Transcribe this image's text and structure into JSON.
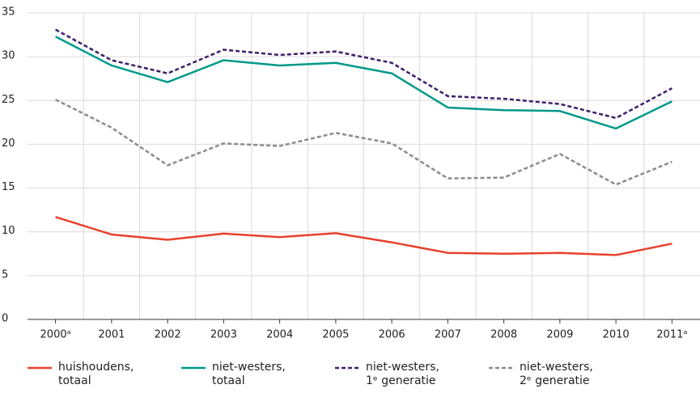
{
  "chart_data": {
    "type": "line",
    "categories": [
      "2000ᵃ",
      "2001",
      "2002",
      "2003",
      "2004",
      "2005",
      "2006",
      "2007",
      "2008",
      "2009",
      "2010",
      "2011ᵃ"
    ],
    "series": [
      {
        "name": "huishoudens, totaal",
        "color": "#e8412c",
        "line_style": "solid",
        "values": [
          11.7,
          9.7,
          9.1,
          9.8,
          9.4,
          9.85,
          8.8,
          7.6,
          7.5,
          7.6,
          7.35,
          8.65
        ]
      },
      {
        "name": "niet-westers, totaal",
        "color": "#00998a",
        "line_style": "solid",
        "values": [
          32.3,
          29.0,
          27.1,
          29.6,
          29.0,
          29.3,
          28.1,
          24.2,
          23.9,
          23.8,
          21.8,
          24.9
        ]
      },
      {
        "name": "niet-westers, 1ᵉ generatie",
        "color": "#3e1f6b",
        "line_style": "dashed",
        "values": [
          33.1,
          29.6,
          28.1,
          30.8,
          30.2,
          30.6,
          29.3,
          25.5,
          25.2,
          24.6,
          23.0,
          26.4
        ]
      },
      {
        "name": "niet-westers, 2ᵉ generatie",
        "color": "#8c8c8c",
        "line_style": "dashed",
        "values": [
          25.1,
          21.9,
          17.6,
          20.1,
          19.8,
          21.3,
          20.1,
          16.1,
          16.2,
          18.9,
          15.4,
          18.0
        ]
      }
    ],
    "ylim": [
      0,
      35
    ],
    "yticks": [
      0,
      5,
      10,
      15,
      20,
      25,
      30,
      35
    ],
    "grid": true,
    "legend": "bottom"
  }
}
